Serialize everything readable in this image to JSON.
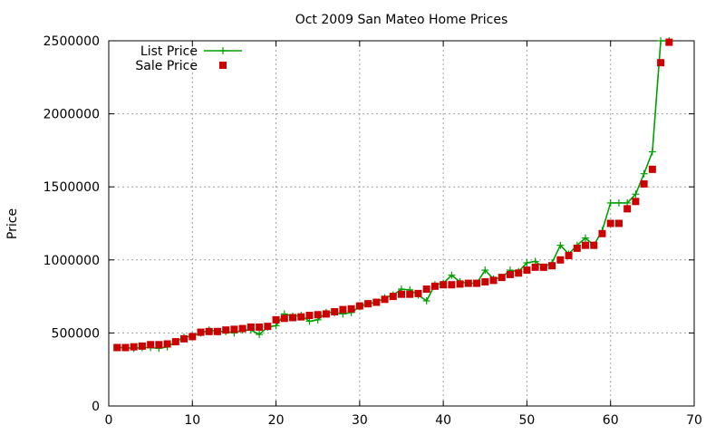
{
  "chart_data": {
    "type": "line",
    "title": "Oct 2009 San Mateo Home Prices",
    "xlabel": "",
    "ylabel": "Price",
    "xlim": [
      0,
      70
    ],
    "ylim": [
      0,
      2500000
    ],
    "x_ticks": [
      0,
      10,
      20,
      30,
      40,
      50,
      60,
      70
    ],
    "y_ticks": [
      0,
      500000,
      1000000,
      1500000,
      2000000,
      2500000
    ],
    "grid": true,
    "legend_position": "top-left",
    "series": [
      {
        "name": "List Price",
        "style": "line-with-plus-markers",
        "color": "#00a000",
        "x": [
          1,
          2,
          3,
          4,
          5,
          6,
          7,
          8,
          9,
          10,
          11,
          12,
          13,
          14,
          15,
          16,
          17,
          18,
          19,
          20,
          21,
          22,
          23,
          24,
          25,
          26,
          27,
          28,
          29,
          30,
          31,
          32,
          33,
          34,
          35,
          36,
          37,
          38,
          39,
          40,
          41,
          42,
          43,
          44,
          45,
          46,
          47,
          48,
          49,
          50,
          51,
          52,
          53,
          54,
          55,
          56,
          57,
          58,
          59,
          60,
          61,
          62,
          63,
          64,
          65,
          66,
          67
        ],
        "values": [
          400000,
          400000,
          395000,
          400000,
          400000,
          395000,
          405000,
          440000,
          470000,
          480000,
          500000,
          520000,
          510000,
          510000,
          500000,
          520000,
          520000,
          490000,
          540000,
          550000,
          630000,
          615000,
          620000,
          580000,
          590000,
          640000,
          640000,
          630000,
          640000,
          680000,
          700000,
          710000,
          740000,
          760000,
          800000,
          795000,
          760000,
          720000,
          830000,
          840000,
          895000,
          850000,
          840000,
          840000,
          930000,
          870000,
          880000,
          930000,
          920000,
          980000,
          990000,
          950000,
          980000,
          1100000,
          1040000,
          1100000,
          1150000,
          1100000,
          1200000,
          1390000,
          1390000,
          1390000,
          1450000,
          1590000,
          1740000,
          2500000,
          2500000
        ]
      },
      {
        "name": "Sale Price",
        "style": "square-markers",
        "color": "#cc0000",
        "x": [
          1,
          2,
          3,
          4,
          5,
          6,
          7,
          8,
          9,
          10,
          11,
          12,
          13,
          14,
          15,
          16,
          17,
          18,
          19,
          20,
          21,
          22,
          23,
          24,
          25,
          26,
          27,
          28,
          29,
          30,
          31,
          32,
          33,
          34,
          35,
          36,
          37,
          38,
          39,
          40,
          41,
          42,
          43,
          44,
          45,
          46,
          47,
          48,
          49,
          50,
          51,
          52,
          53,
          54,
          55,
          56,
          57,
          58,
          59,
          60,
          61,
          62,
          63,
          64,
          65,
          66,
          67
        ],
        "values": [
          400000,
          400000,
          405000,
          410000,
          420000,
          420000,
          425000,
          440000,
          460000,
          475000,
          505000,
          510000,
          510000,
          520000,
          525000,
          530000,
          540000,
          540000,
          545000,
          590000,
          600000,
          605000,
          610000,
          620000,
          625000,
          630000,
          645000,
          660000,
          665000,
          685000,
          700000,
          710000,
          730000,
          750000,
          765000,
          765000,
          770000,
          800000,
          820000,
          830000,
          830000,
          835000,
          840000,
          840000,
          850000,
          860000,
          880000,
          900000,
          910000,
          930000,
          950000,
          950000,
          960000,
          1000000,
          1030000,
          1080000,
          1100000,
          1100000,
          1180000,
          1250000,
          1250000,
          1350000,
          1400000,
          1520000,
          1620000,
          2350000,
          2490000
        ]
      }
    ]
  }
}
